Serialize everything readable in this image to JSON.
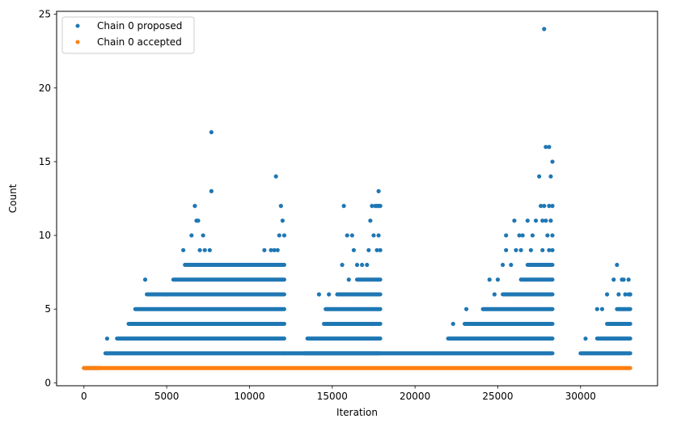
{
  "chart_data": {
    "type": "scatter",
    "title": "",
    "xlabel": "Iteration",
    "ylabel": "Count",
    "xlim": [
      -1650,
      34650
    ],
    "ylim": [
      -0.2,
      25.2
    ],
    "xticks": [
      0,
      5000,
      10000,
      15000,
      20000,
      25000,
      30000
    ],
    "xtick_labels": [
      "0",
      "5000",
      "10000",
      "15000",
      "20000",
      "25000",
      "30000"
    ],
    "yticks": [
      0,
      5,
      10,
      15,
      20,
      25
    ],
    "ytick_labels": [
      "0",
      "5",
      "10",
      "15",
      "20",
      "25"
    ],
    "grid": false,
    "legend_position": "top-left",
    "colors": {
      "proposed": "#1f77b4",
      "accepted": "#ff7f0e"
    },
    "series": [
      {
        "name": "Chain 0 proposed",
        "color": "#1f77b4",
        "segments": [
          {
            "x_start": 0,
            "x_end": 1000,
            "y": 1
          },
          {
            "x_start": 1300,
            "x_end": 12100,
            "y": 2
          },
          {
            "x_start": 2000,
            "x_end": 12100,
            "y": 3
          },
          {
            "x_start": 2700,
            "x_end": 12100,
            "y": 4
          },
          {
            "x_start": 3100,
            "x_end": 12100,
            "y": 5
          },
          {
            "x_start": 3800,
            "x_end": 12100,
            "y": 6
          },
          {
            "x_start": 5400,
            "x_end": 12100,
            "y": 7
          },
          {
            "x_start": 6100,
            "x_end": 12100,
            "y": 8
          },
          {
            "x_start": 12100,
            "x_end": 21200,
            "y": 2
          },
          {
            "x_start": 13300,
            "x_end": 17900,
            "y": 2
          },
          {
            "x_start": 13500,
            "x_end": 17900,
            "y": 3
          },
          {
            "x_start": 14500,
            "x_end": 17900,
            "y": 4
          },
          {
            "x_start": 14600,
            "x_end": 17900,
            "y": 5
          },
          {
            "x_start": 15300,
            "x_end": 17900,
            "y": 6
          },
          {
            "x_start": 16500,
            "x_end": 17900,
            "y": 7
          },
          {
            "x_start": 21200,
            "x_end": 28300,
            "y": 2
          },
          {
            "x_start": 22000,
            "x_end": 28300,
            "y": 3
          },
          {
            "x_start": 23000,
            "x_end": 28300,
            "y": 4
          },
          {
            "x_start": 24100,
            "x_end": 28300,
            "y": 5
          },
          {
            "x_start": 25300,
            "x_end": 28300,
            "y": 6
          },
          {
            "x_start": 26400,
            "x_end": 28300,
            "y": 7
          },
          {
            "x_start": 26800,
            "x_end": 28300,
            "y": 8
          },
          {
            "x_start": 30000,
            "x_end": 33000,
            "y": 2
          },
          {
            "x_start": 31000,
            "x_end": 33000,
            "y": 3
          },
          {
            "x_start": 31600,
            "x_end": 33000,
            "y": 4
          },
          {
            "x_start": 32200,
            "x_end": 33000,
            "y": 5
          }
        ],
        "points": [
          {
            "x": 1400,
            "y": 3
          },
          {
            "x": 3700,
            "y": 7
          },
          {
            "x": 5000,
            "y": 6
          },
          {
            "x": 6000,
            "y": 9
          },
          {
            "x": 6500,
            "y": 10
          },
          {
            "x": 6700,
            "y": 12
          },
          {
            "x": 6800,
            "y": 11
          },
          {
            "x": 6900,
            "y": 11
          },
          {
            "x": 7000,
            "y": 9
          },
          {
            "x": 7200,
            "y": 10
          },
          {
            "x": 7300,
            "y": 9
          },
          {
            "x": 7600,
            "y": 9
          },
          {
            "x": 7700,
            "y": 13
          },
          {
            "x": 7700,
            "y": 17
          },
          {
            "x": 9500,
            "y": 8
          },
          {
            "x": 9900,
            "y": 8
          },
          {
            "x": 10900,
            "y": 9
          },
          {
            "x": 11300,
            "y": 9
          },
          {
            "x": 11500,
            "y": 9
          },
          {
            "x": 11600,
            "y": 14
          },
          {
            "x": 11700,
            "y": 9
          },
          {
            "x": 11800,
            "y": 10
          },
          {
            "x": 11900,
            "y": 12
          },
          {
            "x": 12000,
            "y": 11
          },
          {
            "x": 12100,
            "y": 10
          },
          {
            "x": 14200,
            "y": 6
          },
          {
            "x": 14800,
            "y": 6
          },
          {
            "x": 15600,
            "y": 8
          },
          {
            "x": 15700,
            "y": 12
          },
          {
            "x": 15900,
            "y": 10
          },
          {
            "x": 16000,
            "y": 7
          },
          {
            "x": 16200,
            "y": 10
          },
          {
            "x": 16300,
            "y": 9
          },
          {
            "x": 16500,
            "y": 8
          },
          {
            "x": 16800,
            "y": 8
          },
          {
            "x": 17100,
            "y": 8
          },
          {
            "x": 17200,
            "y": 9
          },
          {
            "x": 17300,
            "y": 11
          },
          {
            "x": 17400,
            "y": 12
          },
          {
            "x": 17500,
            "y": 10
          },
          {
            "x": 17600,
            "y": 12
          },
          {
            "x": 17700,
            "y": 12
          },
          {
            "x": 17700,
            "y": 9
          },
          {
            "x": 17800,
            "y": 13
          },
          {
            "x": 17800,
            "y": 12
          },
          {
            "x": 17800,
            "y": 10
          },
          {
            "x": 17900,
            "y": 12
          },
          {
            "x": 17900,
            "y": 9
          },
          {
            "x": 22300,
            "y": 4
          },
          {
            "x": 23100,
            "y": 5
          },
          {
            "x": 24500,
            "y": 7
          },
          {
            "x": 24800,
            "y": 6
          },
          {
            "x": 25000,
            "y": 7
          },
          {
            "x": 25300,
            "y": 8
          },
          {
            "x": 25500,
            "y": 9
          },
          {
            "x": 25500,
            "y": 10
          },
          {
            "x": 25800,
            "y": 8
          },
          {
            "x": 26000,
            "y": 11
          },
          {
            "x": 26100,
            "y": 9
          },
          {
            "x": 26300,
            "y": 10
          },
          {
            "x": 26400,
            "y": 9
          },
          {
            "x": 26500,
            "y": 10
          },
          {
            "x": 26800,
            "y": 11
          },
          {
            "x": 27000,
            "y": 9
          },
          {
            "x": 27100,
            "y": 10
          },
          {
            "x": 27300,
            "y": 11
          },
          {
            "x": 27500,
            "y": 14
          },
          {
            "x": 27600,
            "y": 12
          },
          {
            "x": 27700,
            "y": 11
          },
          {
            "x": 27700,
            "y": 9
          },
          {
            "x": 27800,
            "y": 24
          },
          {
            "x": 27800,
            "y": 12
          },
          {
            "x": 27900,
            "y": 16
          },
          {
            "x": 27900,
            "y": 11
          },
          {
            "x": 28000,
            "y": 10
          },
          {
            "x": 28100,
            "y": 16
          },
          {
            "x": 28100,
            "y": 12
          },
          {
            "x": 28100,
            "y": 9
          },
          {
            "x": 28200,
            "y": 14
          },
          {
            "x": 28200,
            "y": 11
          },
          {
            "x": 28300,
            "y": 15
          },
          {
            "x": 28300,
            "y": 12
          },
          {
            "x": 28300,
            "y": 10
          },
          {
            "x": 28300,
            "y": 9
          },
          {
            "x": 30300,
            "y": 3
          },
          {
            "x": 31000,
            "y": 5
          },
          {
            "x": 31300,
            "y": 5
          },
          {
            "x": 31600,
            "y": 6
          },
          {
            "x": 32000,
            "y": 7
          },
          {
            "x": 32200,
            "y": 8
          },
          {
            "x": 32300,
            "y": 6
          },
          {
            "x": 32500,
            "y": 7
          },
          {
            "x": 32600,
            "y": 7
          },
          {
            "x": 32700,
            "y": 6
          },
          {
            "x": 32900,
            "y": 6
          },
          {
            "x": 32900,
            "y": 7
          },
          {
            "x": 33000,
            "y": 6
          }
        ]
      },
      {
        "name": "Chain 0 accepted",
        "color": "#ff7f0e",
        "segments": [
          {
            "x_start": 0,
            "x_end": 33000,
            "y": 1
          }
        ],
        "points": []
      }
    ]
  }
}
